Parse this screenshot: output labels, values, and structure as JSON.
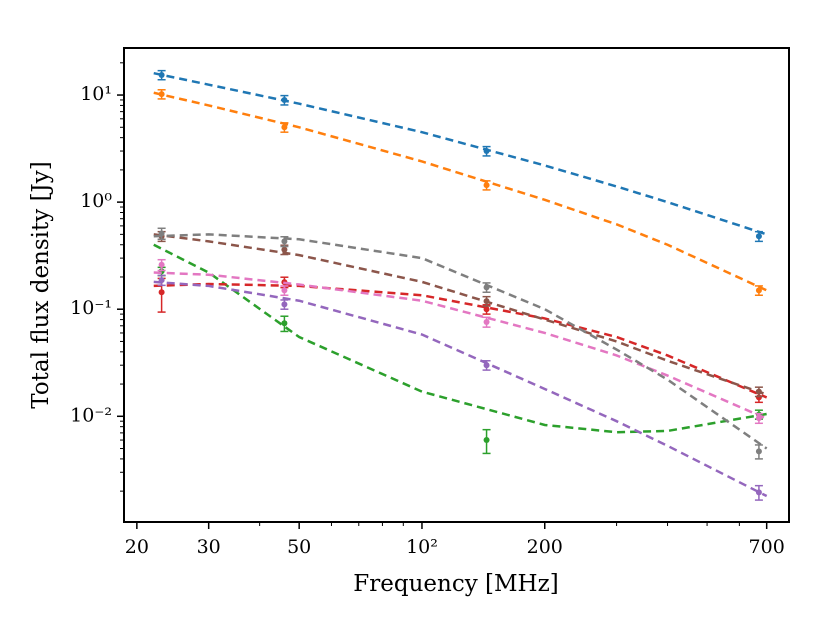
{
  "chart_data": {
    "type": "scatter",
    "xscale": "log",
    "yscale": "log",
    "xlabel": "Frequency [MHz]",
    "ylabel": "Total flux density [Jy]",
    "xlim": [
      18.6,
      794
    ],
    "ylim": [
      0.00103,
      27.5
    ],
    "xticks": [
      20,
      30,
      50,
      {
        "value": 100,
        "label": "10²"
      },
      200,
      700
    ],
    "xminor": [
      40,
      60,
      70,
      80,
      90,
      300,
      400,
      500,
      600
    ],
    "yticks": [
      {
        "value": 10,
        "label": "10¹"
      },
      {
        "value": 1,
        "label": "10⁰"
      },
      {
        "value": 0.1,
        "label": "10⁻¹"
      },
      {
        "value": 0.01,
        "label": "10⁻²"
      }
    ],
    "yminor": [
      0.002,
      0.003,
      0.004,
      0.005,
      0.006,
      0.007,
      0.008,
      0.009,
      0.02,
      0.03,
      0.04,
      0.05,
      0.06,
      0.07,
      0.08,
      0.09,
      0.2,
      0.3,
      0.4,
      0.5,
      0.6,
      0.7,
      0.8,
      0.9,
      2,
      3,
      4,
      5,
      6,
      7,
      8,
      9,
      20
    ],
    "x": [
      23,
      46,
      144,
      670
    ],
    "fit_x": [
      22,
      30,
      50,
      100,
      200,
      300,
      400,
      700
    ],
    "series": [
      {
        "color": "#1f77b4",
        "values": [
          15.4,
          8.98,
          3.0,
          0.48
        ],
        "errors": [
          1.5,
          0.9,
          0.3,
          0.05
        ],
        "fit": [
          16,
          12.5,
          8.3,
          4.5,
          2.2,
          1.4,
          1.0,
          0.5
        ]
      },
      {
        "color": "#ff7f0e",
        "values": [
          10.2,
          5.0,
          1.44,
          0.15
        ],
        "errors": [
          1.0,
          0.5,
          0.14,
          0.015
        ],
        "fit": [
          10.5,
          8,
          5,
          2.4,
          1.05,
          0.62,
          0.4,
          0.15
        ]
      },
      {
        "color": "#2ca02c",
        "values": [
          0.226,
          0.074,
          0.006,
          0.0104
        ],
        "errors": [
          0.02,
          0.012,
          0.0015,
          0.001
        ],
        "fit": [
          0.4,
          0.22,
          0.055,
          0.017,
          0.0083,
          0.0071,
          0.0073,
          0.0105
        ]
      },
      {
        "color": "#d62728",
        "values": [
          0.144,
          0.179,
          0.1,
          0.015
        ],
        "errors": [
          0.05,
          0.02,
          0.01,
          0.0015
        ],
        "fit": [
          0.165,
          0.172,
          0.165,
          0.135,
          0.082,
          0.055,
          0.037,
          0.015
        ]
      },
      {
        "color": "#9467bd",
        "values": [
          0.187,
          0.111,
          0.03,
          0.00195
        ],
        "errors": [
          0.02,
          0.011,
          0.003,
          0.0003
        ],
        "fit": [
          0.18,
          0.165,
          0.12,
          0.058,
          0.018,
          0.009,
          0.0053,
          0.0018
        ]
      },
      {
        "color": "#8c564b",
        "values": [
          0.48,
          0.36,
          0.119,
          0.017
        ],
        "errors": [
          0.05,
          0.036,
          0.012,
          0.0017
        ],
        "fit": [
          0.5,
          0.43,
          0.32,
          0.18,
          0.08,
          0.05,
          0.033,
          0.016
        ]
      },
      {
        "color": "#e377c2",
        "values": [
          0.26,
          0.15,
          0.076,
          0.0096
        ],
        "errors": [
          0.03,
          0.015,
          0.008,
          0.001
        ],
        "fit": [
          0.22,
          0.21,
          0.17,
          0.12,
          0.06,
          0.037,
          0.024,
          0.0095
        ]
      },
      {
        "color": "#7f7f7f",
        "values": [
          0.51,
          0.43,
          0.16,
          0.0047
        ],
        "errors": [
          0.06,
          0.045,
          0.016,
          0.0007
        ],
        "fit": [
          0.48,
          0.5,
          0.45,
          0.3,
          0.1,
          0.042,
          0.022,
          0.005
        ]
      }
    ]
  }
}
